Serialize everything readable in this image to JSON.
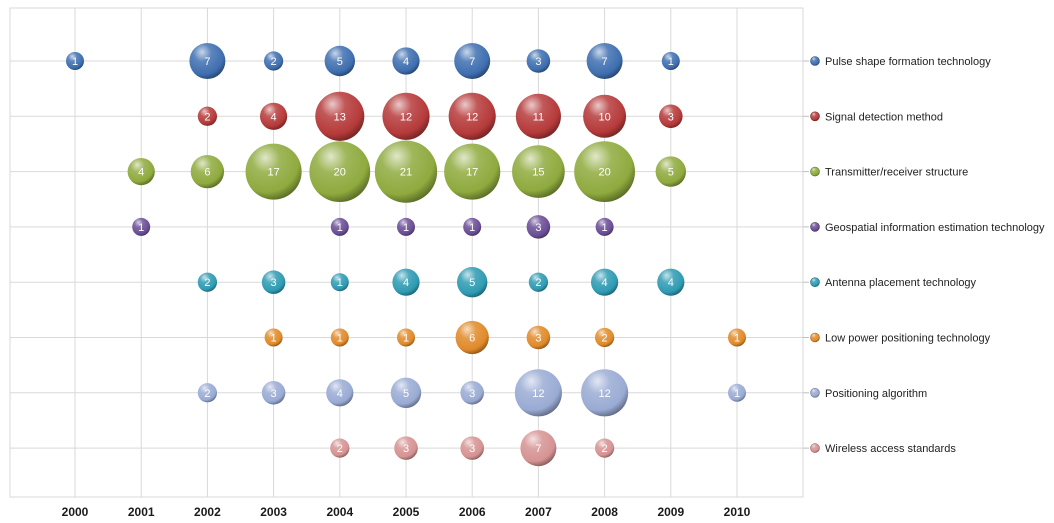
{
  "chart_data": {
    "type": "bubble",
    "title": "",
    "xlabel": "",
    "ylabel": "",
    "x": [
      "2000",
      "2001",
      "2002",
      "2003",
      "2004",
      "2005",
      "2006",
      "2007",
      "2008",
      "2009",
      "2010"
    ],
    "grid": true,
    "legend_position": "right",
    "series": [
      {
        "name": "Pulse shape formation technology",
        "color": "#3f6fb0",
        "values": [
          1,
          null,
          7,
          2,
          5,
          4,
          7,
          3,
          7,
          1,
          null
        ]
      },
      {
        "name": "Signal detection method",
        "color": "#b63a3a",
        "values": [
          null,
          null,
          2,
          4,
          13,
          12,
          12,
          11,
          10,
          3,
          null
        ]
      },
      {
        "name": "Transmitter/receiver structure",
        "color": "#8faa3e",
        "values": [
          null,
          4,
          6,
          17,
          20,
          21,
          17,
          15,
          20,
          5,
          null
        ]
      },
      {
        "name": "Geospatial information estimation technology",
        "color": "#6b4e96",
        "values": [
          null,
          1,
          null,
          null,
          1,
          1,
          1,
          3,
          1,
          null,
          null
        ]
      },
      {
        "name": "Antenna placement technology",
        "color": "#2f9bb3",
        "values": [
          null,
          null,
          2,
          3,
          1,
          4,
          5,
          2,
          4,
          4,
          null
        ]
      },
      {
        "name": "Low power positioning technology",
        "color": "#e08a2a",
        "values": [
          null,
          null,
          null,
          1,
          1,
          1,
          6,
          3,
          2,
          null,
          1
        ]
      },
      {
        "name": "Positioning algorithm",
        "color": "#9aabd4",
        "values": [
          null,
          null,
          2,
          3,
          4,
          5,
          3,
          12,
          12,
          null,
          1
        ]
      },
      {
        "name": "Wireless access standards",
        "color": "#d69393",
        "values": [
          null,
          null,
          null,
          null,
          2,
          3,
          3,
          7,
          2,
          null,
          null
        ]
      }
    ]
  }
}
